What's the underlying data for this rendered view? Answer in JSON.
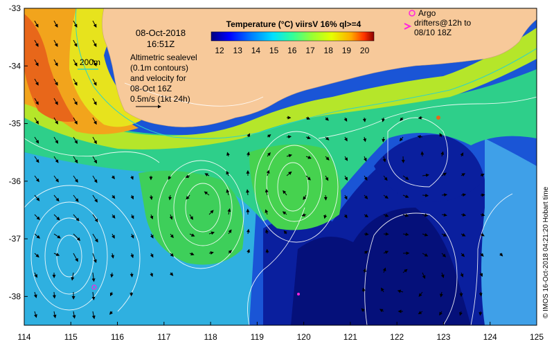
{
  "map": {
    "date": "08-Oct-2018",
    "time": "16:51Z",
    "contour_legend_label": "200m",
    "sealevel_note": [
      "Altimetric sealevel",
      "(0.1m contours)",
      "and velocity for",
      "08-Oct 16Z"
    ],
    "velocity_scale_label": "0.5m/s (1kt 24h)",
    "colorbar_title": "Temperature (°C) viirsV 16% ql>=4",
    "colorbar_ticks": [
      "12",
      "13",
      "14",
      "15",
      "16",
      "17",
      "18",
      "19",
      "20"
    ],
    "argo_label": "Argo",
    "drifters_label": [
      "drifters@12h to",
      "08/10 18Z"
    ],
    "credit": "© IMOS 16-Oct-2018 04:21:20 Hobart time",
    "x_ticks": [
      "114",
      "115",
      "116",
      "117",
      "118",
      "119",
      "120",
      "121",
      "122",
      "123",
      "124",
      "125"
    ],
    "y_ticks": [
      "-33",
      "-34",
      "-35",
      "-36",
      "-37",
      "-38"
    ],
    "lon_range": [
      114,
      125
    ],
    "lat_range": [
      -38.5,
      -33
    ],
    "colors": {
      "land": "#f7c99a",
      "argo": "#ff22dd",
      "contour": "#ffffff",
      "shelf": "#2fd3c6"
    },
    "colormap": [
      "#00007f",
      "#0000ff",
      "#0080ff",
      "#00e0ff",
      "#33ff99",
      "#99ff33",
      "#e6ff00",
      "#ffbb00",
      "#ff5500",
      "#b00000"
    ]
  }
}
